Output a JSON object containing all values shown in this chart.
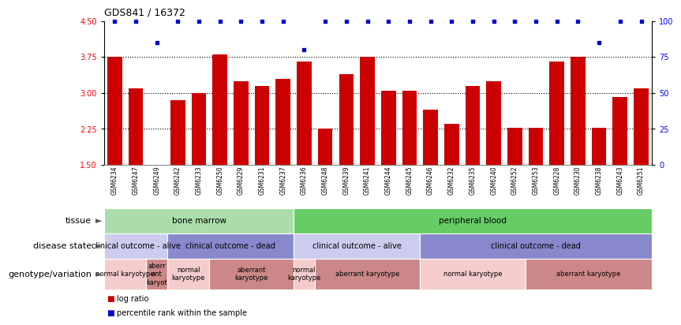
{
  "title": "GDS841 / 16372",
  "samples": [
    "GSM6234",
    "GSM6247",
    "GSM6249",
    "GSM6242",
    "GSM6233",
    "GSM6250",
    "GSM6229",
    "GSM6231",
    "GSM6237",
    "GSM6236",
    "GSM6248",
    "GSM6239",
    "GSM6241",
    "GSM6244",
    "GSM6245",
    "GSM6246",
    "GSM6232",
    "GSM6235",
    "GSM6240",
    "GSM6252",
    "GSM6253",
    "GSM6228",
    "GSM6230",
    "GSM6238",
    "GSM6243",
    "GSM6251"
  ],
  "log_ratios": [
    3.75,
    3.1,
    1.5,
    2.85,
    3.0,
    3.8,
    3.25,
    3.15,
    3.3,
    3.65,
    2.25,
    3.4,
    3.75,
    3.05,
    3.05,
    2.65,
    2.35,
    3.15,
    3.25,
    2.28,
    2.28,
    3.65,
    3.75,
    2.28,
    2.92,
    3.1
  ],
  "percentile_ranks": [
    100,
    100,
    85,
    100,
    100,
    100,
    100,
    100,
    100,
    80,
    100,
    100,
    100,
    100,
    100,
    100,
    100,
    100,
    100,
    100,
    100,
    100,
    100,
    85,
    100,
    100
  ],
  "bar_color": "#cc0000",
  "dot_color": "#0000cc",
  "ylim_left": [
    1.5,
    4.5
  ],
  "ylim_right": [
    0,
    100
  ],
  "yticks_left": [
    1.5,
    2.25,
    3.0,
    3.75,
    4.5
  ],
  "yticks_right": [
    0,
    25,
    50,
    75,
    100
  ],
  "hlines": [
    2.25,
    3.0,
    3.75
  ],
  "tissue_segments": [
    {
      "text": "bone marrow",
      "start": 0,
      "end": 9,
      "color": "#aaddaa"
    },
    {
      "text": "peripheral blood",
      "start": 9,
      "end": 26,
      "color": "#66cc66"
    }
  ],
  "disease_segments": [
    {
      "text": "clinical outcome - alive",
      "start": 0,
      "end": 3,
      "color": "#ccccee"
    },
    {
      "text": "clinical outcome - dead",
      "start": 3,
      "end": 9,
      "color": "#8888cc"
    },
    {
      "text": "clinical outcome - alive",
      "start": 9,
      "end": 15,
      "color": "#ccccee"
    },
    {
      "text": "clinical outcome - dead",
      "start": 15,
      "end": 26,
      "color": "#8888cc"
    }
  ],
  "genotype_segments": [
    {
      "text": "normal karyotype",
      "start": 0,
      "end": 2,
      "color": "#f5cccc"
    },
    {
      "text": "aberr\nant\nkaryot",
      "start": 2,
      "end": 3,
      "color": "#cc8888"
    },
    {
      "text": "normal\nkaryotype",
      "start": 3,
      "end": 5,
      "color": "#f5cccc"
    },
    {
      "text": "aberrant\nkaryotype",
      "start": 5,
      "end": 9,
      "color": "#cc8888"
    },
    {
      "text": "normal\nkaryotype",
      "start": 9,
      "end": 10,
      "color": "#f5cccc"
    },
    {
      "text": "aberrant karyotype",
      "start": 10,
      "end": 15,
      "color": "#cc8888"
    },
    {
      "text": "normal karyotype",
      "start": 15,
      "end": 20,
      "color": "#f5cccc"
    },
    {
      "text": "aberrant karyotype",
      "start": 20,
      "end": 26,
      "color": "#cc8888"
    }
  ],
  "row_labels": [
    "tissue",
    "disease state",
    "genotype/variation"
  ],
  "legend_red": "log ratio",
  "legend_blue": "percentile rank within the sample",
  "background_color": "#ffffff",
  "title_fontsize": 9,
  "tick_fontsize": 7,
  "xtick_fontsize": 5.5,
  "annot_fontsize_tissue": 7.5,
  "annot_fontsize_disease": 7,
  "annot_fontsize_genotype": 6,
  "row_label_fontsize": 8
}
